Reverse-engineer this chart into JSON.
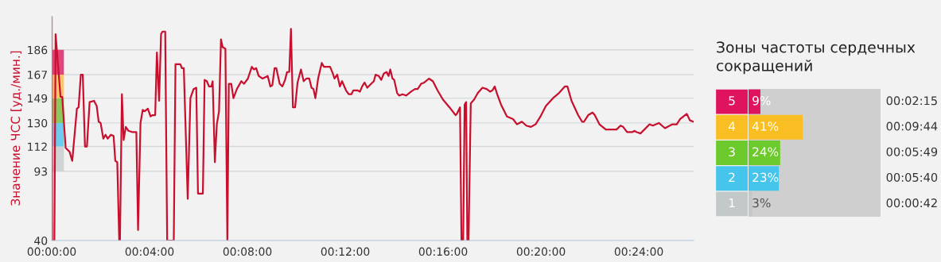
{
  "chart_data": [
    {
      "type": "line",
      "ylabel": "Значение ЧСС [уд./мин.]",
      "x": [
        0,
        0.02,
        0.11,
        0.16,
        0.36,
        0.43,
        0.57,
        0.73,
        0.84,
        1.03,
        1.1,
        1.19,
        1.27,
        1.36,
        1.44,
        1.55,
        1.73,
        1.84,
        1.92,
        2.0,
        2.11,
        2.2,
        2.29,
        2.42,
        2.53,
        2.6,
        2.68,
        2.76,
        2.79,
        2.87,
        2.94,
        3.03,
        3.14,
        3.31,
        3.46,
        3.53,
        3.63,
        3.72,
        3.8,
        3.93,
        4.04,
        4.12,
        4.23,
        4.3,
        4.39,
        4.47,
        4.53,
        4.64,
        4.72,
        4.99,
        5.06,
        5.26,
        5.32,
        5.4,
        5.56,
        5.67,
        5.8,
        5.91,
        5.98,
        6.18,
        6.25,
        6.34,
        6.43,
        6.53,
        6.58,
        6.67,
        6.75,
        6.84,
        6.92,
        6.99,
        7.1,
        7.18,
        7.24,
        7.34,
        7.43,
        7.57,
        7.75,
        7.86,
        8.02,
        8.18,
        8.27,
        8.36,
        8.46,
        8.62,
        8.83,
        8.94,
        9.02,
        9.11,
        9.18,
        9.32,
        9.43,
        9.54,
        9.62,
        9.71,
        9.78,
        9.86,
        9.95,
        10.05,
        10.19,
        10.3,
        10.41,
        10.53,
        10.62,
        10.7,
        10.78,
        10.89,
        11.04,
        11.13,
        11.38,
        11.49,
        11.56,
        11.67,
        11.78,
        11.87,
        12.03,
        12.14,
        12.25,
        12.33,
        12.42,
        12.5,
        12.6,
        12.69,
        12.79,
        12.9,
        13.06,
        13.17,
        13.24,
        13.37,
        13.47,
        13.58,
        13.69,
        13.77,
        13.84,
        13.93,
        14.0,
        14.12,
        14.2,
        14.34,
        14.49,
        14.69,
        14.85,
        14.96,
        15.1,
        15.23,
        15.42,
        15.58,
        15.77,
        15.99,
        16.26,
        16.51,
        16.56,
        16.69,
        16.75,
        16.82,
        16.88,
        16.94,
        16.99,
        17.04,
        17.13,
        17.27,
        17.42,
        17.61,
        17.78,
        17.92,
        18.02,
        18.11,
        18.21,
        18.37,
        18.61,
        18.86,
        19.02,
        19.22,
        19.4,
        19.59,
        19.78,
        19.98,
        20.2,
        20.49,
        20.74,
        20.98,
        21.08,
        21.25,
        21.52,
        21.68,
        21.76,
        21.93,
        22.11,
        22.2,
        22.39,
        22.65,
        23.09,
        23.25,
        23.36,
        23.52,
        23.74,
        23.81,
        23.92,
        24.07,
        24.23,
        24.44,
        24.57,
        24.82,
        25.07,
        25.37,
        25.55,
        25.69,
        25.96,
        26.09,
        26.23
      ],
      "series": [
        {
          "color": "#c8102e",
          "values": [
            211,
            40,
            40,
            198,
            150,
            150,
            111,
            108,
            101,
            141,
            142,
            167,
            167,
            112,
            112,
            146,
            147,
            143,
            131,
            130,
            118,
            121,
            118,
            121,
            120,
            101,
            100,
            40,
            40,
            152,
            117,
            127,
            124,
            123,
            123,
            48,
            130,
            140,
            139,
            141,
            135,
            136,
            136,
            184,
            147,
            198,
            200,
            200,
            40,
            40,
            175,
            175,
            172,
            172,
            72,
            149,
            156,
            157,
            76,
            76,
            163,
            162,
            158,
            158,
            162,
            100,
            129,
            139,
            194,
            188,
            187,
            40,
            160,
            160,
            149,
            156,
            162,
            160,
            164,
            173,
            171,
            172,
            166,
            164,
            166,
            158,
            159,
            172,
            172,
            160,
            158,
            163,
            169,
            169,
            202,
            142,
            142,
            161,
            171,
            162,
            164,
            164,
            157,
            156,
            149,
            164,
            176,
            173,
            173,
            168,
            164,
            167,
            158,
            162,
            155,
            152,
            152,
            155,
            155,
            155,
            154,
            158,
            161,
            157,
            160,
            162,
            167,
            166,
            163,
            168,
            169,
            166,
            171,
            164,
            163,
            153,
            151,
            152,
            151,
            154,
            156,
            156,
            160,
            161,
            164,
            162,
            155,
            148,
            142,
            136,
            137,
            142,
            40,
            40,
            144,
            146,
            40,
            40,
            145,
            148,
            153,
            157,
            156,
            154,
            155,
            158,
            152,
            144,
            135,
            133,
            129,
            131,
            128,
            127,
            129,
            135,
            143,
            149,
            153,
            158,
            158,
            147,
            136,
            131,
            131,
            136,
            138,
            136,
            129,
            125,
            125,
            128,
            127,
            123,
            123,
            124,
            123,
            122,
            125,
            129,
            128,
            130,
            126,
            129,
            129,
            133,
            137,
            132,
            131
          ]
        }
      ],
      "xlim": [
        0,
        26.24
      ],
      "ylim": [
        40,
        212
      ],
      "xticks": [
        {
          "value": 0,
          "label": "00:00:00"
        },
        {
          "value": 4,
          "label": "00:04:00"
        },
        {
          "value": 8,
          "label": "00:08:00"
        },
        {
          "value": 12,
          "label": "00:12:00"
        },
        {
          "value": 16,
          "label": "00:16:00"
        },
        {
          "value": 20,
          "label": "00:20:00"
        },
        {
          "value": 24,
          "label": "00:24:00"
        }
      ],
      "yticks": [
        40,
        93,
        112,
        130,
        149,
        167,
        186
      ],
      "grid": "y"
    },
    {
      "type": "bar",
      "orientation": "horizontal",
      "title": "Зоны частоты сердечных сокращений",
      "categories": [
        "5",
        "4",
        "3",
        "2",
        "1"
      ],
      "values": [
        9,
        41,
        24,
        23,
        3
      ],
      "colors": [
        "#e0145e",
        "#f9be22",
        "#6dca2c",
        "#45c4ec",
        "#c3c9c9"
      ],
      "value_labels": [
        "9%",
        "41%",
        "24%",
        "23%",
        "3%"
      ],
      "xlim": [
        0,
        100
      ],
      "tick_labels": "y",
      "annotations": [
        "00:02:15",
        "00:09:44",
        "00:05:49",
        "00:05:40",
        "00:00:42"
      ]
    }
  ]
}
